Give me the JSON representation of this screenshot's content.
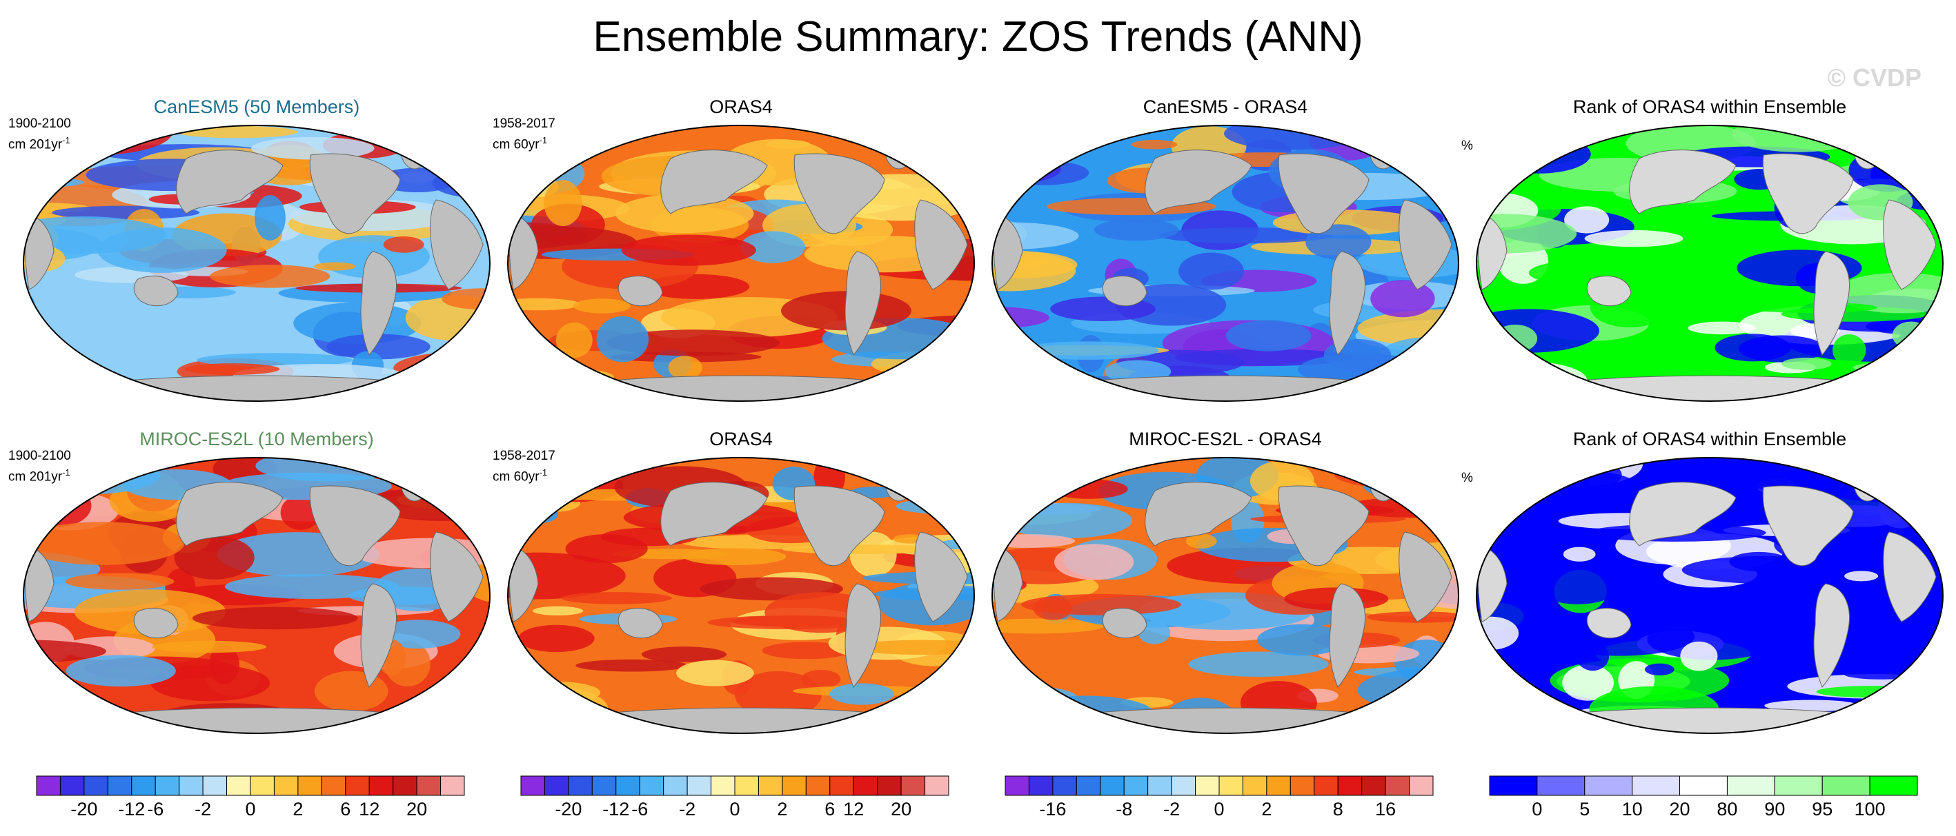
{
  "title": "Ensemble Summary: ZOS Trends (ANN)",
  "watermark": "© CVDP",
  "colors": {
    "land": "#bfbfbf",
    "landmask_light": "#d9d9d9",
    "cb_main": [
      "#8a2be2",
      "#3b2ee6",
      "#2f55e6",
      "#2f78ea",
      "#2f9bef",
      "#4fb3f4",
      "#8fcff8",
      "#c0e2f8",
      "#fdf6b0",
      "#fde36a",
      "#fdc33a",
      "#f9a11b",
      "#f6711c",
      "#ee3d19",
      "#e01515",
      "#c81818",
      "#d9504a",
      "#f6b6b6"
    ],
    "cb_rank": [
      "#0000ff",
      "#6b6bff",
      "#b0b0ff",
      "#e0e0ff",
      "#ffffff",
      "#e2fde2",
      "#b4fbb4",
      "#7ff77f",
      "#00ff00"
    ]
  },
  "chart_data": [
    {
      "type": "heatmap",
      "title": "CanESM5 (50 Members)",
      "title_color": "#1a6e8f",
      "period": "1900-2100",
      "units_base": "cm 201yr",
      "units_exp": "-1",
      "pattern": "diverging-cool",
      "colorbar_ticks": [
        "-20",
        "-12",
        "-6",
        "-2",
        "0",
        "2",
        "6",
        "12",
        "20"
      ]
    },
    {
      "type": "heatmap",
      "title": "ORAS4",
      "title_color": "#000000",
      "period": "1958-2017",
      "units_base": "cm 60yr",
      "units_exp": "-1",
      "pattern": "warm",
      "colorbar_ticks": [
        "-20",
        "-12",
        "-6",
        "-2",
        "0",
        "2",
        "6",
        "12",
        "20"
      ]
    },
    {
      "type": "heatmap",
      "title": "CanESM5 - ORAS4",
      "title_color": "#000000",
      "pattern": "cool",
      "colorbar_ticks": [
        "-16",
        "-8",
        "-2",
        "0",
        "2",
        "8",
        "16"
      ]
    },
    {
      "type": "heatmap",
      "title": "Rank of ORAS4 within Ensemble",
      "title_color": "#000000",
      "units_base": "%",
      "pattern": "rank-green",
      "colorbar_ticks": [
        "0",
        "5",
        "10",
        "20",
        "80",
        "90",
        "95",
        "100"
      ]
    },
    {
      "type": "heatmap",
      "title": "MIROC-ES2L (10 Members)",
      "title_color": "#5b8f5b",
      "period": "1900-2100",
      "units_base": "cm 201yr",
      "units_exp": "-1",
      "pattern": "warm-red"
    },
    {
      "type": "heatmap",
      "title": "ORAS4",
      "title_color": "#000000",
      "period": "1958-2017",
      "units_base": "cm 60yr",
      "units_exp": "-1",
      "pattern": "warm"
    },
    {
      "type": "heatmap",
      "title": "MIROC-ES2L - ORAS4",
      "title_color": "#000000",
      "pattern": "warm-mixed"
    },
    {
      "type": "heatmap",
      "title": "Rank of ORAS4 within Ensemble",
      "title_color": "#000000",
      "units_base": "%",
      "pattern": "rank-blue"
    }
  ]
}
